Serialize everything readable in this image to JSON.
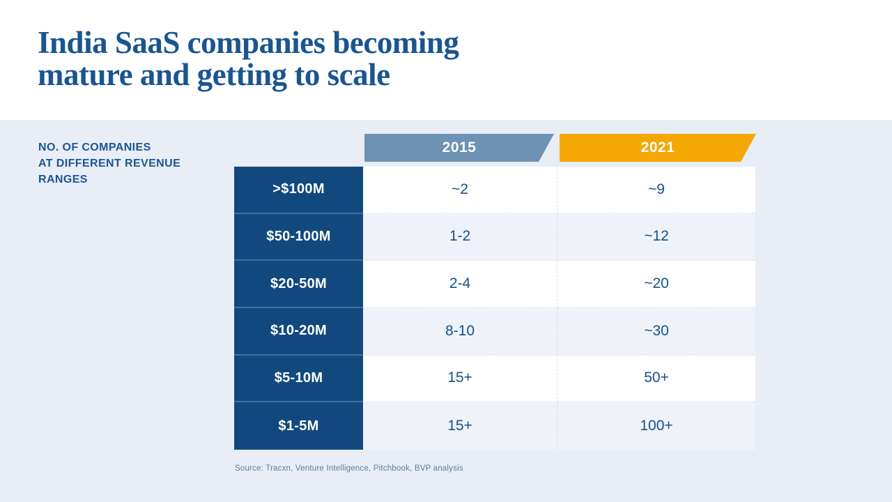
{
  "slide": {
    "title_line1": "India SaaS companies becoming",
    "title_line2": "mature and getting to scale",
    "section_label": "NO. OF COMPANIES\nAT DIFFERENT REVENUE\nRANGES",
    "source": "Source: Tracxn, Venture Intelligence, Pitchbook, BVP analysis"
  },
  "table": {
    "columns": [
      "2015",
      "2021"
    ],
    "rows": [
      {
        "label": ">$100M",
        "y2015": "~2",
        "y2021": "~9"
      },
      {
        "label": "$50-100M",
        "y2015": "1-2",
        "y2021": "~12"
      },
      {
        "label": "$20-50M",
        "y2015": "2-4",
        "y2021": "~20"
      },
      {
        "label": "$10-20M",
        "y2015": "8-10",
        "y2021": "~30"
      },
      {
        "label": "$5-10M",
        "y2015": "15+",
        "y2021": "50+"
      },
      {
        "label": "$1-5M",
        "y2015": "15+",
        "y2021": "100+"
      }
    ]
  },
  "colors": {
    "title_blue": "#1A5590",
    "navy_cell": "#11497E",
    "steel_blue_2015": "#6D92B4",
    "orange_2021": "#F5A704",
    "page_background": "#E9EDF6",
    "alt_row_background": "#EFF3F9",
    "value_text": "#14518A",
    "source_text": "#5E7E97"
  },
  "chart_data": {
    "type": "table",
    "title": "India SaaS companies becoming mature and getting to scale",
    "subtitle": "No. of companies at different revenue ranges",
    "categories": [
      ">$100M",
      "$50-100M",
      "$20-50M",
      "$10-20M",
      "$5-10M",
      "$1-5M"
    ],
    "series": [
      {
        "name": "2015",
        "values": [
          "~2",
          "1-2",
          "2-4",
          "8-10",
          "15+",
          "15+"
        ]
      },
      {
        "name": "2021",
        "values": [
          "~9",
          "~12",
          "~20",
          "~30",
          "50+",
          "100+"
        ]
      }
    ],
    "source": "Source: Tracxn, Venture Intelligence, Pitchbook, BVP analysis"
  }
}
